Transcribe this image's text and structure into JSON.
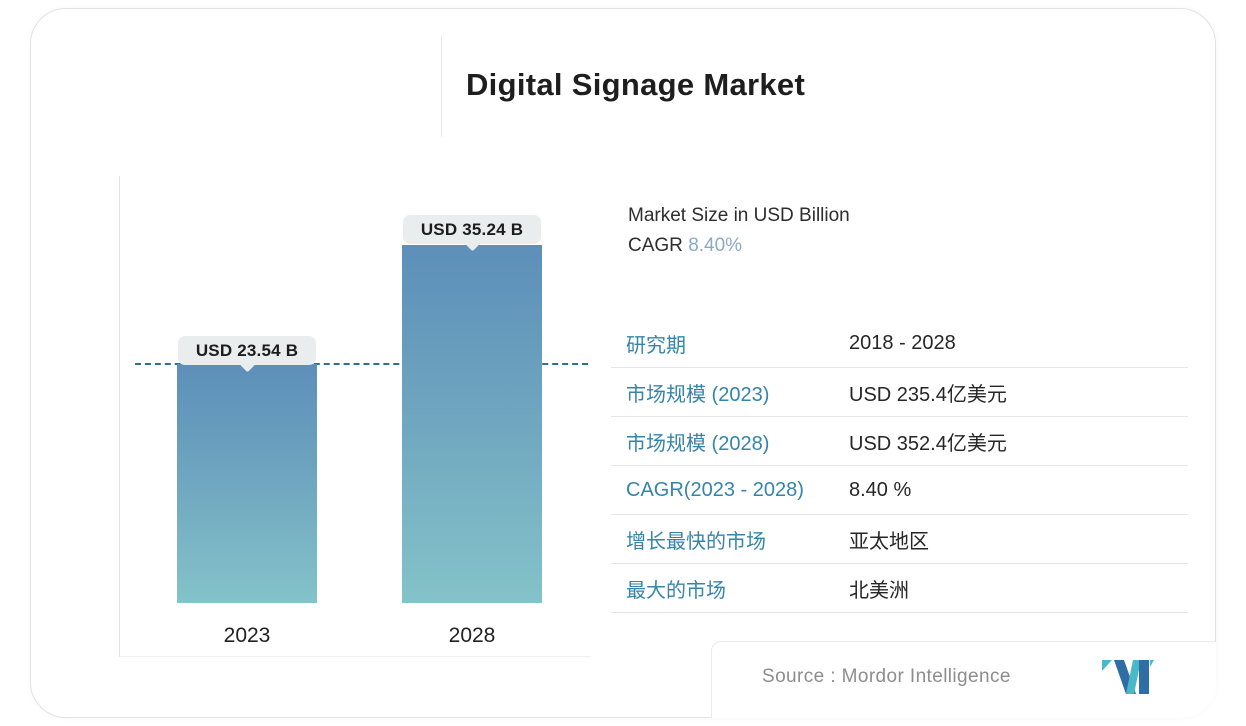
{
  "page_title": "Digital Signage Market",
  "chart_data": {
    "type": "bar",
    "title": "Digital Signage Market",
    "categories": [
      "2023",
      "2028"
    ],
    "values": [
      23.54,
      35.24
    ],
    "bar_labels": [
      "USD 23.54 B",
      "USD 35.24 B"
    ],
    "unit": "USD Billion",
    "ylim": [
      0,
      36
    ],
    "grid": false,
    "legend": "none",
    "reference_line": {
      "value": 23.54,
      "style": "dashed"
    },
    "bar_color_top": "#5d8fb9",
    "bar_color_bottom": "#84c3c9"
  },
  "info": {
    "market_size_label": "Market Size in USD Billion",
    "cagr_label": "CAGR",
    "cagr_value": "8.40%"
  },
  "table": {
    "rows": [
      {
        "label": "研究期",
        "value": "2018 - 2028"
      },
      {
        "label": "市场规模 (2023)",
        "value": "USD 235.4亿美元"
      },
      {
        "label": "市场规模 (2028)",
        "value": "USD 352.4亿美元"
      },
      {
        "label": "CAGR(2023 - 2028)",
        "value": "8.40 %"
      },
      {
        "label": "增长最快的市场",
        "value": "亚太地区"
      },
      {
        "label": "最大的市场",
        "value": "北美洲"
      }
    ]
  },
  "source": {
    "text": "Source :  Mordor Intelligence"
  },
  "colors": {
    "table_label_teal": "#3585aa",
    "cagr_value_blue": "#8ca9c4",
    "dashed_line": "#2f7090",
    "tooltip_bg": "#e9edee",
    "logo_dark_blue": "#2f6ea5",
    "logo_teal": "#49b9c7"
  }
}
